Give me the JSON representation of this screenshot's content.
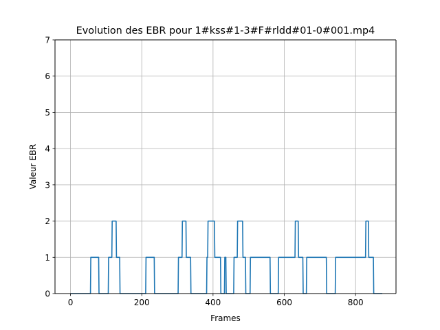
{
  "chart_data": {
    "type": "line",
    "title": "Evolution des EBR pour 1#kss#1-3#F#rldd#01-0#001.mp4",
    "xlabel": "Frames",
    "ylabel": "Valeur EBR",
    "xlim": [
      -43.5,
      913.5
    ],
    "ylim": [
      0,
      7
    ],
    "xticks": [
      0,
      200,
      400,
      600,
      800
    ],
    "yticks": [
      0,
      1,
      2,
      3,
      4,
      5,
      6,
      7
    ],
    "grid": true,
    "line_color": "#1f77b4",
    "series": [
      {
        "name": "",
        "x": [
          0,
          56,
          57,
          79,
          80,
          106,
          107,
          116,
          117,
          128,
          129,
          138,
          139,
          211,
          212,
          235,
          236,
          302,
          303,
          313,
          314,
          324,
          325,
          337,
          338,
          382,
          383,
          385,
          386,
          404,
          405,
          421,
          422,
          432,
          433,
          436,
          437,
          458,
          459,
          468,
          469,
          483,
          484,
          491,
          492,
          504,
          505,
          560,
          561,
          583,
          584,
          630,
          631,
          639,
          640,
          652,
          653,
          662,
          663,
          718,
          719,
          743,
          744,
          828,
          829,
          836,
          837,
          850,
          851,
          858,
          859,
          875
        ],
        "y": [
          0,
          0,
          1,
          1,
          0,
          0,
          1,
          1,
          2,
          2,
          1,
          1,
          0,
          0,
          1,
          1,
          0,
          0,
          1,
          1,
          2,
          2,
          1,
          1,
          0,
          0,
          1,
          1,
          2,
          2,
          1,
          1,
          0,
          0,
          1,
          1,
          0,
          0,
          1,
          1,
          2,
          2,
          1,
          1,
          0,
          0,
          1,
          1,
          0,
          0,
          1,
          1,
          2,
          2,
          1,
          1,
          0,
          0,
          1,
          1,
          0,
          0,
          1,
          1,
          2,
          2,
          1,
          1,
          0,
          0,
          0,
          0
        ]
      }
    ]
  }
}
